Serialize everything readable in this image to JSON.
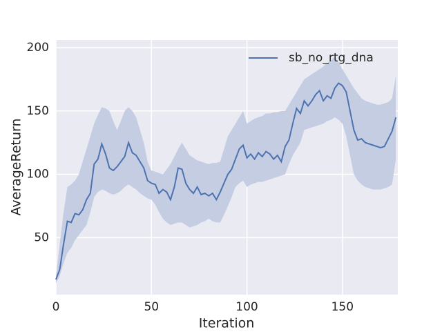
{
  "chart_data": {
    "type": "line",
    "xlabel": "Iteration",
    "ylabel": "AverageReturn",
    "x": [
      0,
      2,
      4,
      6,
      8,
      10,
      12,
      14,
      16,
      18,
      20,
      22,
      24,
      26,
      28,
      30,
      32,
      34,
      36,
      38,
      40,
      42,
      44,
      46,
      48,
      50,
      52,
      54,
      56,
      58,
      60,
      62,
      64,
      66,
      68,
      70,
      72,
      74,
      76,
      78,
      80,
      82,
      84,
      86,
      88,
      90,
      92,
      94,
      96,
      98,
      100,
      102,
      104,
      106,
      108,
      110,
      112,
      114,
      116,
      118,
      120,
      122,
      124,
      126,
      128,
      130,
      132,
      134,
      136,
      138,
      140,
      142,
      144,
      146,
      148,
      150,
      152,
      154,
      156,
      158,
      160,
      162,
      164,
      166,
      168,
      170,
      172,
      174,
      176,
      178
    ],
    "series": [
      {
        "name": "sb_no_rtg_dna",
        "color": "#4c72b0",
        "band_color": "#c5cde3",
        "values": [
          17,
          25,
          45,
          63,
          62,
          69,
          68,
          72,
          80,
          85,
          108,
          112,
          124,
          116,
          105,
          103,
          106,
          110,
          114,
          125,
          117,
          115,
          110,
          105,
          95,
          93,
          92,
          85,
          88,
          86,
          80,
          90,
          105,
          104,
          93,
          88,
          85,
          90,
          84,
          85,
          83,
          85,
          80,
          86,
          93,
          100,
          104,
          112,
          120,
          123,
          113,
          116,
          112,
          117,
          114,
          118,
          116,
          112,
          115,
          110,
          122,
          127,
          140,
          152,
          148,
          158,
          154,
          158,
          163,
          166,
          158,
          162,
          160,
          168,
          172,
          170,
          165,
          150,
          135,
          127,
          128,
          125,
          124,
          123,
          122,
          121,
          122,
          128,
          134,
          145
        ],
        "lower": [
          14,
          20,
          30,
          38,
          42,
          48,
          52,
          56,
          60,
          70,
          82,
          86,
          88,
          87,
          85,
          84,
          85,
          87,
          90,
          92,
          90,
          88,
          85,
          83,
          81,
          80,
          76,
          70,
          65,
          62,
          60,
          61,
          62,
          62,
          60,
          58,
          59,
          60,
          62,
          63,
          65,
          63,
          62,
          62,
          68,
          75,
          82,
          90,
          93,
          95,
          90,
          92,
          93,
          94,
          94,
          95,
          96,
          97,
          98,
          99,
          100,
          108,
          115,
          120,
          125,
          135,
          136,
          137,
          138,
          139,
          140,
          142,
          143,
          145,
          143,
          140,
          130,
          115,
          100,
          95,
          92,
          90,
          89,
          88,
          88,
          88,
          89,
          90,
          92,
          112
        ],
        "upper": [
          20,
          45,
          70,
          90,
          92,
          95,
          100,
          110,
          120,
          130,
          140,
          147,
          153,
          152,
          150,
          142,
          135,
          142,
          150,
          153,
          150,
          145,
          135,
          125,
          110,
          103,
          102,
          101,
          100,
          104,
          108,
          114,
          120,
          125,
          120,
          115,
          113,
          111,
          110,
          109,
          108,
          109,
          109,
          110,
          120,
          130,
          135,
          140,
          145,
          150,
          140,
          142,
          144,
          145,
          146,
          148,
          148,
          149,
          149,
          150,
          150,
          155,
          160,
          165,
          170,
          175,
          177,
          179,
          181,
          183,
          185,
          188,
          190,
          193,
          188,
          183,
          178,
          173,
          168,
          164,
          160,
          158,
          157,
          156,
          155,
          155,
          156,
          157,
          160,
          178
        ]
      }
    ],
    "xlim": [
      0,
      179
    ],
    "ylim": [
      5,
      206
    ],
    "xticks": [
      0,
      50,
      100,
      150
    ],
    "yticks": [
      50,
      100,
      150,
      200
    ],
    "grid": true,
    "legend": "upper right"
  }
}
